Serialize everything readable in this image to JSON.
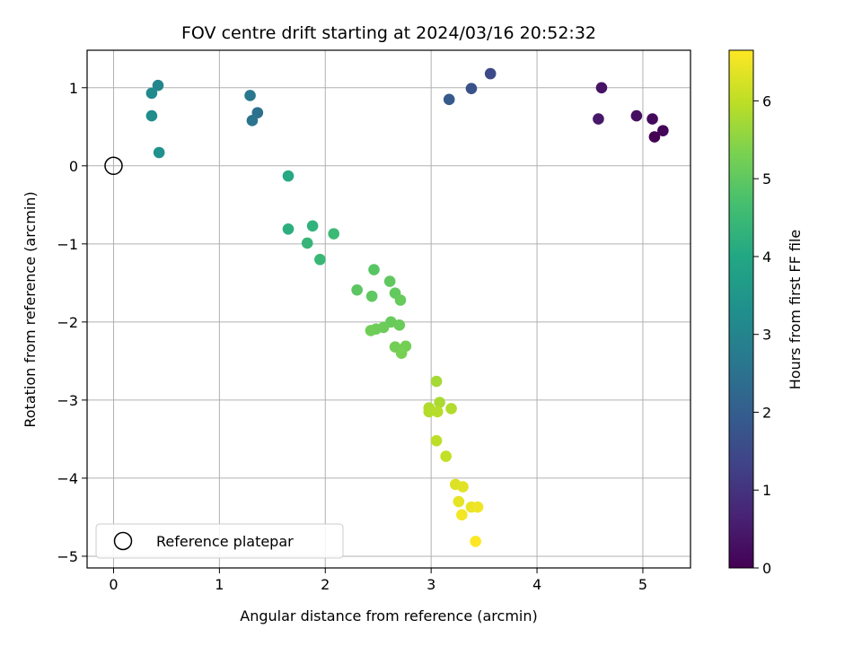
{
  "chart_data": {
    "type": "scatter",
    "title": "FOV centre drift starting at 2024/03/16 20:52:32",
    "xlabel": "Angular distance from reference (arcmin)",
    "ylabel": "Rotation from reference (arcmin)",
    "xlim": [
      -0.25,
      5.45
    ],
    "ylim": [
      -5.15,
      1.48
    ],
    "xticks": [
      0,
      1,
      2,
      3,
      4,
      5
    ],
    "yticks": [
      1,
      0,
      -1,
      -2,
      -3,
      -4,
      -5
    ],
    "grid": true,
    "legend": {
      "position": "bottom-left",
      "entries": [
        "Reference platepar"
      ]
    },
    "colorbar": {
      "label": "Hours from first FF file",
      "colormap": "viridis",
      "range": [
        0,
        6.65
      ],
      "ticks": [
        0,
        1,
        2,
        3,
        4,
        5,
        6
      ]
    },
    "reference_point": {
      "label": "Reference platepar",
      "x": 0,
      "y": 0
    },
    "series": [
      {
        "points": [
          {
            "x": 5.11,
            "y": 0.37,
            "c": 0.0
          },
          {
            "x": 5.19,
            "y": 0.45,
            "c": 0.08
          },
          {
            "x": 5.09,
            "y": 0.6,
            "c": 0.15
          },
          {
            "x": 4.94,
            "y": 0.64,
            "c": 0.25
          },
          {
            "x": 4.61,
            "y": 1.0,
            "c": 0.35
          },
          {
            "x": 4.58,
            "y": 0.6,
            "c": 0.45
          },
          {
            "x": 3.56,
            "y": 1.18,
            "c": 1.5
          },
          {
            "x": 3.38,
            "y": 0.99,
            "c": 1.7
          },
          {
            "x": 3.17,
            "y": 0.85,
            "c": 1.9
          },
          {
            "x": 1.36,
            "y": 0.68,
            "c": 2.45
          },
          {
            "x": 1.31,
            "y": 0.58,
            "c": 2.55
          },
          {
            "x": 1.29,
            "y": 0.9,
            "c": 2.65
          },
          {
            "x": 0.42,
            "y": 1.03,
            "c": 3.05
          },
          {
            "x": 0.36,
            "y": 0.93,
            "c": 3.15
          },
          {
            "x": 0.36,
            "y": 0.64,
            "c": 3.25
          },
          {
            "x": 0.43,
            "y": 0.17,
            "c": 3.35
          },
          {
            "x": 1.65,
            "y": -0.13,
            "c": 4.05
          },
          {
            "x": 1.65,
            "y": -0.81,
            "c": 4.2
          },
          {
            "x": 1.88,
            "y": -0.77,
            "c": 4.3
          },
          {
            "x": 1.83,
            "y": -0.99,
            "c": 4.4
          },
          {
            "x": 1.95,
            "y": -1.2,
            "c": 4.45
          },
          {
            "x": 2.08,
            "y": -0.87,
            "c": 4.5
          },
          {
            "x": 2.46,
            "y": -1.33,
            "c": 4.9
          },
          {
            "x": 2.3,
            "y": -1.59,
            "c": 4.95
          },
          {
            "x": 2.44,
            "y": -1.67,
            "c": 5.0
          },
          {
            "x": 2.61,
            "y": -1.48,
            "c": 5.02
          },
          {
            "x": 2.66,
            "y": -1.63,
            "c": 5.05
          },
          {
            "x": 2.71,
            "y": -1.72,
            "c": 5.08
          },
          {
            "x": 2.62,
            "y": -2.0,
            "c": 5.1
          },
          {
            "x": 2.7,
            "y": -2.04,
            "c": 5.12
          },
          {
            "x": 2.55,
            "y": -2.07,
            "c": 5.15
          },
          {
            "x": 2.48,
            "y": -2.09,
            "c": 5.18
          },
          {
            "x": 2.43,
            "y": -2.11,
            "c": 5.2
          },
          {
            "x": 2.66,
            "y": -2.32,
            "c": 5.23
          },
          {
            "x": 2.76,
            "y": -2.31,
            "c": 5.25
          },
          {
            "x": 2.72,
            "y": -2.4,
            "c": 5.28
          },
          {
            "x": 3.05,
            "y": -2.76,
            "c": 5.75
          },
          {
            "x": 3.08,
            "y": -3.03,
            "c": 5.8
          },
          {
            "x": 2.98,
            "y": -3.1,
            "c": 5.85
          },
          {
            "x": 3.19,
            "y": -3.11,
            "c": 5.88
          },
          {
            "x": 2.98,
            "y": -3.15,
            "c": 5.9
          },
          {
            "x": 3.06,
            "y": -3.15,
            "c": 5.92
          },
          {
            "x": 3.05,
            "y": -3.52,
            "c": 5.98
          },
          {
            "x": 3.14,
            "y": -3.72,
            "c": 6.05
          },
          {
            "x": 3.23,
            "y": -4.08,
            "c": 6.3
          },
          {
            "x": 3.3,
            "y": -4.11,
            "c": 6.35
          },
          {
            "x": 3.26,
            "y": -4.3,
            "c": 6.4
          },
          {
            "x": 3.38,
            "y": -4.37,
            "c": 6.45
          },
          {
            "x": 3.44,
            "y": -4.37,
            "c": 6.5
          },
          {
            "x": 3.29,
            "y": -4.47,
            "c": 6.55
          },
          {
            "x": 3.42,
            "y": -4.81,
            "c": 6.65
          }
        ]
      }
    ]
  }
}
